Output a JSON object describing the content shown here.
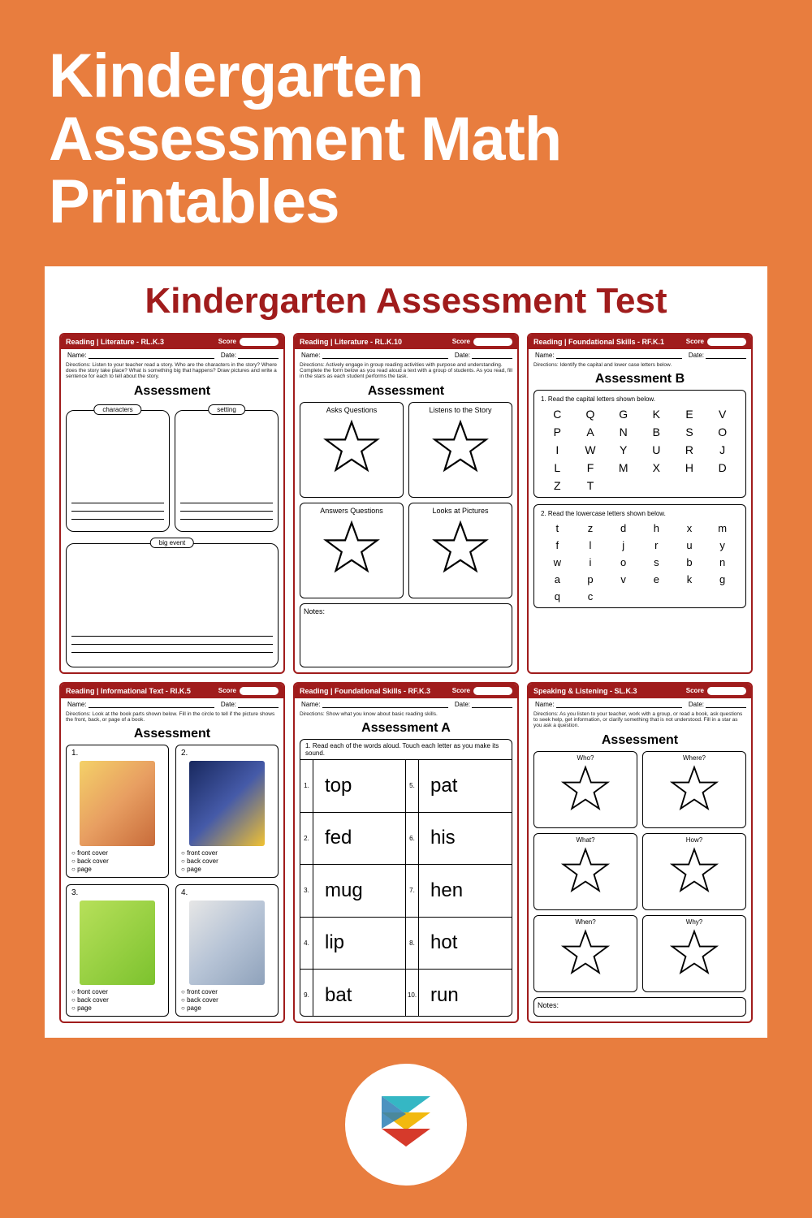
{
  "colors": {
    "bg": "#e87d3e",
    "accent": "#a01c1c",
    "white": "#ffffff"
  },
  "headline": "Kindergarten Assessment Math Printables",
  "panel_title": "Kindergarten Assessment Test",
  "labels": {
    "name": "Name:",
    "date": "Date:",
    "score": "Score",
    "notes": "Notes:"
  },
  "cards": [
    {
      "id": "rlk3",
      "header": "Reading | Literature - RL.K.3",
      "directions": "Directions: Listen to your teacher read a story. Who are the characters in the story? Where does the story take place? What is something big that happens? Draw pictures and write a sentence for each to tell about the story.",
      "title": "Assessment",
      "boxes": {
        "characters": "characters",
        "setting": "setting",
        "big_event": "big event"
      }
    },
    {
      "id": "rlk10",
      "header": "Reading | Literature - RL.K.10",
      "directions": "Directions: Actively engage in group reading activities with purpose and understanding. Complete the form below as you read aloud a text with a group of students. As you read, fill in the stars as each student performs the task.",
      "title": "Assessment",
      "stars": [
        "Asks Questions",
        "Listens to the Story",
        "Answers Questions",
        "Looks at Pictures"
      ]
    },
    {
      "id": "rfk1",
      "header": "Reading | Foundational Skills - RF.K.1",
      "directions": "Directions: Identify the capital and lower case letters below.",
      "title": "Assessment B",
      "cap_caption": "1. Read the capital letters shown below.",
      "caps": [
        "C",
        "Q",
        "G",
        "K",
        "E",
        "V",
        "P",
        "A",
        "N",
        "B",
        "S",
        "O",
        "I",
        "W",
        "Y",
        "U",
        "R",
        "J",
        "L",
        "F",
        "M",
        "X",
        "H",
        "D",
        "Z",
        "T",
        "",
        "",
        "",
        ""
      ],
      "low_caption": "2. Read the lowercase letters shown below.",
      "lows": [
        "t",
        "z",
        "d",
        "h",
        "x",
        "m",
        "f",
        "l",
        "j",
        "r",
        "u",
        "y",
        "w",
        "i",
        "o",
        "s",
        "b",
        "n",
        "a",
        "p",
        "v",
        "e",
        "k",
        "g",
        "q",
        "c",
        "",
        "",
        "",
        ""
      ]
    },
    {
      "id": "rik5",
      "header": "Reading | Informational Text - RI.K.5",
      "directions": "Directions: Look at the book parts shown below. Fill in the circle to tell if the picture shows the front, back, or page of a book.",
      "title": "Assessment",
      "options": [
        "front cover",
        "back cover",
        "page"
      ],
      "items": [
        "1.",
        "2.",
        "3.",
        "4."
      ]
    },
    {
      "id": "rfk3",
      "header": "Reading | Foundational Skills - RF.K.3",
      "directions": "Directions: Show what you know about basic reading skills.",
      "title": "Assessment A",
      "table_caption": "1. Read each of the words aloud.  Touch each letter as you make its sound.",
      "left": [
        "top",
        "fed",
        "mug",
        "lip",
        "bat"
      ],
      "right": [
        "pat",
        "his",
        "hen",
        "hot",
        "run"
      ],
      "nums_left": [
        "1.",
        "2.",
        "3.",
        "4.",
        "9."
      ],
      "nums_right": [
        "5.",
        "6.",
        "7.",
        "8.",
        "10."
      ]
    },
    {
      "id": "slk3",
      "header": "Speaking & Listening - SL.K.3",
      "directions": "Directions: As you listen to your teacher, work with a group, or read a book, ask questions to seek help, get information, or clarify something that is not understood. Fill in a star as you ask a question.",
      "title": "Assessment",
      "qwords": [
        "Who?",
        "Where?",
        "What?",
        "How?",
        "When?",
        "Why?"
      ]
    }
  ]
}
